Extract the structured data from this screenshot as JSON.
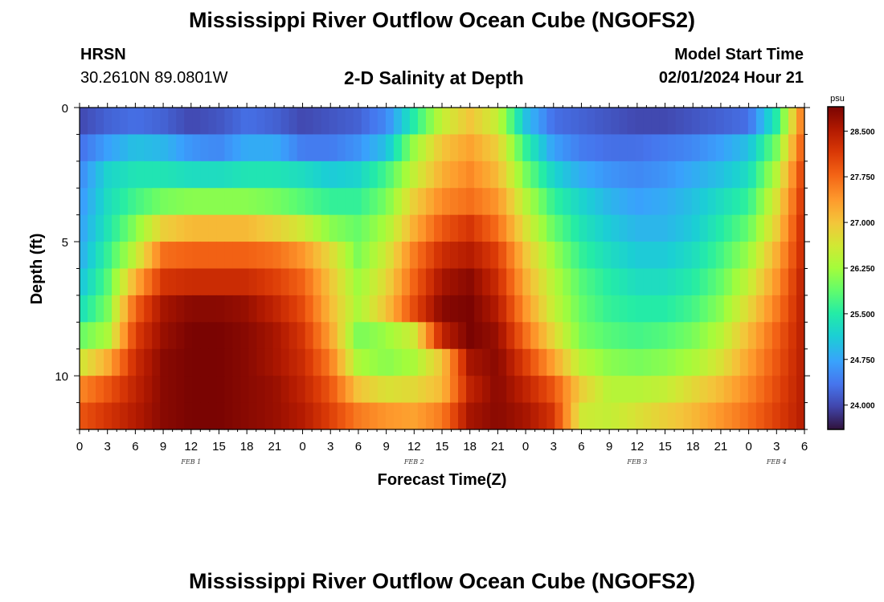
{
  "header": {
    "title": "Mississippi River Outflow Ocean Cube (NGOFS2)",
    "station_name": "HRSN",
    "station_coords": "30.2610N  89.0801W",
    "plot_title": "2-D Salinity at Depth",
    "model_start_label": "Model Start Time",
    "model_start_value": "02/01/2024 Hour 21"
  },
  "footer": {
    "title": "Mississippi River Outflow Ocean Cube (NGOFS2)"
  },
  "chart_data": {
    "type": "heatmap",
    "title": "2-D Salinity at Depth",
    "xlabel": "Forecast Time(Z)",
    "ylabel": "Depth (ft)",
    "x_range_hours": [
      0,
      78
    ],
    "y_range_ft": [
      0,
      12
    ],
    "y_ticks": [
      0,
      5,
      10
    ],
    "x_tick_labels": [
      "0",
      "3",
      "6",
      "9",
      "12",
      "15",
      "18",
      "21",
      "0",
      "3",
      "6",
      "9",
      "12",
      "15",
      "18",
      "21",
      "0",
      "3",
      "6",
      "9",
      "12",
      "15",
      "18",
      "21",
      "0",
      "3",
      "6"
    ],
    "date_labels": [
      {
        "label": "FEB 1",
        "hour": 12
      },
      {
        "label": "FEB 2",
        "hour": 36
      },
      {
        "label": "FEB 3",
        "hour": 60
      },
      {
        "label": "FEB 4",
        "hour": 75
      }
    ],
    "colorbar": {
      "unit": "psu",
      "min": 23.6,
      "max": 28.9,
      "ticks": [
        24.0,
        24.75,
        25.5,
        26.25,
        27.0,
        27.75,
        28.5
      ],
      "tick_labels": [
        "24.000",
        "24.750",
        "25.500",
        "26.250",
        "27.000",
        "27.750",
        "28.500"
      ]
    },
    "depth_levels_ft": [
      0.5,
      1.5,
      2.5,
      3.5,
      4.5,
      5.5,
      6.5,
      7.5,
      8.5,
      9.5,
      10.5,
      11.5
    ],
    "keyframe_hours": [
      0,
      3,
      6,
      9,
      12,
      15,
      18,
      21,
      24,
      27,
      30,
      33,
      36,
      39,
      42,
      45,
      48,
      51,
      54,
      57,
      60,
      63,
      66,
      69,
      72,
      75,
      78
    ],
    "salinity_keyframes": [
      [
        24.0,
        24.2,
        24.3,
        24.2,
        24.0,
        24.1,
        24.3,
        24.2,
        24.0,
        24.1,
        24.2,
        24.5,
        25.5,
        26.5,
        27.0,
        26.5,
        25.0,
        24.3,
        24.2,
        24.1,
        24.0,
        24.0,
        24.1,
        24.2,
        24.3,
        25.5,
        27.8
      ],
      [
        24.3,
        24.7,
        25.0,
        24.9,
        24.6,
        24.5,
        24.8,
        24.8,
        24.4,
        24.4,
        24.6,
        25.0,
        26.2,
        27.0,
        27.3,
        26.9,
        25.6,
        24.7,
        24.4,
        24.3,
        24.3,
        24.4,
        24.5,
        24.7,
        25.0,
        26.0,
        28.0
      ],
      [
        24.5,
        25.2,
        25.4,
        25.4,
        25.3,
        25.3,
        25.4,
        25.4,
        25.3,
        25.1,
        25.2,
        25.7,
        26.5,
        27.2,
        27.5,
        27.1,
        26.0,
        25.2,
        24.8,
        24.6,
        24.5,
        24.6,
        24.8,
        25.0,
        25.3,
        26.4,
        28.2
      ],
      [
        24.6,
        25.3,
        25.7,
        26.0,
        26.1,
        26.1,
        26.1,
        26.0,
        25.8,
        25.6,
        25.6,
        26.0,
        26.9,
        27.5,
        27.7,
        27.4,
        26.4,
        25.6,
        25.2,
        24.9,
        24.7,
        24.8,
        25.0,
        25.3,
        25.6,
        26.7,
        28.3
      ],
      [
        24.7,
        25.4,
        26.1,
        26.9,
        27.1,
        27.1,
        27.1,
        26.9,
        26.6,
        26.1,
        25.9,
        26.3,
        27.2,
        27.9,
        28.2,
        27.7,
        26.7,
        25.9,
        25.4,
        25.1,
        24.9,
        24.9,
        25.1,
        25.5,
        25.9,
        26.9,
        28.4
      ],
      [
        24.8,
        25.6,
        26.5,
        27.7,
        27.8,
        27.8,
        27.8,
        27.7,
        27.4,
        26.8,
        26.0,
        26.6,
        27.6,
        28.3,
        28.5,
        28.1,
        27.0,
        26.2,
        25.6,
        25.3,
        25.1,
        25.1,
        25.3,
        25.7,
        26.2,
        27.2,
        28.4
      ],
      [
        25.0,
        25.8,
        27.2,
        28.2,
        28.3,
        28.3,
        28.3,
        28.1,
        27.8,
        27.0,
        26.2,
        26.8,
        27.8,
        28.6,
        28.8,
        28.3,
        27.2,
        26.4,
        25.8,
        25.5,
        25.3,
        25.3,
        25.5,
        25.9,
        26.5,
        27.4,
        28.5
      ],
      [
        25.3,
        26.0,
        27.8,
        28.6,
        28.8,
        28.8,
        28.7,
        28.4,
        28.0,
        27.1,
        26.3,
        27.0,
        28.0,
        28.8,
        28.9,
        28.5,
        27.4,
        26.5,
        25.9,
        25.6,
        25.5,
        25.5,
        25.7,
        26.1,
        26.8,
        27.6,
        28.5
      ],
      [
        25.9,
        26.3,
        28.1,
        28.7,
        28.9,
        28.9,
        28.8,
        28.6,
        28.2,
        27.3,
        26.0,
        26.2,
        26.6,
        28.4,
        28.9,
        28.7,
        27.7,
        26.8,
        26.0,
        25.8,
        25.7,
        25.8,
        26.0,
        26.4,
        27.1,
        27.8,
        28.5
      ],
      [
        26.6,
        27.2,
        28.3,
        28.8,
        28.9,
        28.9,
        28.8,
        28.6,
        28.3,
        27.6,
        26.3,
        26.1,
        26.3,
        27.0,
        28.6,
        28.8,
        28.1,
        27.3,
        26.4,
        26.1,
        26.0,
        26.1,
        26.3,
        26.7,
        27.3,
        27.9,
        28.5
      ],
      [
        27.5,
        27.9,
        28.4,
        28.8,
        28.9,
        28.9,
        28.8,
        28.7,
        28.4,
        27.9,
        27.0,
        26.7,
        26.8,
        27.1,
        28.4,
        28.8,
        28.4,
        27.9,
        26.9,
        26.4,
        26.4,
        26.5,
        26.8,
        27.1,
        27.5,
        28.0,
        28.5
      ],
      [
        27.9,
        28.2,
        28.5,
        28.8,
        28.9,
        28.9,
        28.8,
        28.7,
        28.5,
        28.1,
        27.6,
        27.4,
        27.3,
        27.6,
        28.6,
        28.8,
        28.6,
        28.2,
        26.6,
        26.5,
        26.7,
        26.9,
        27.1,
        27.4,
        27.7,
        28.1,
        28.5
      ]
    ]
  }
}
